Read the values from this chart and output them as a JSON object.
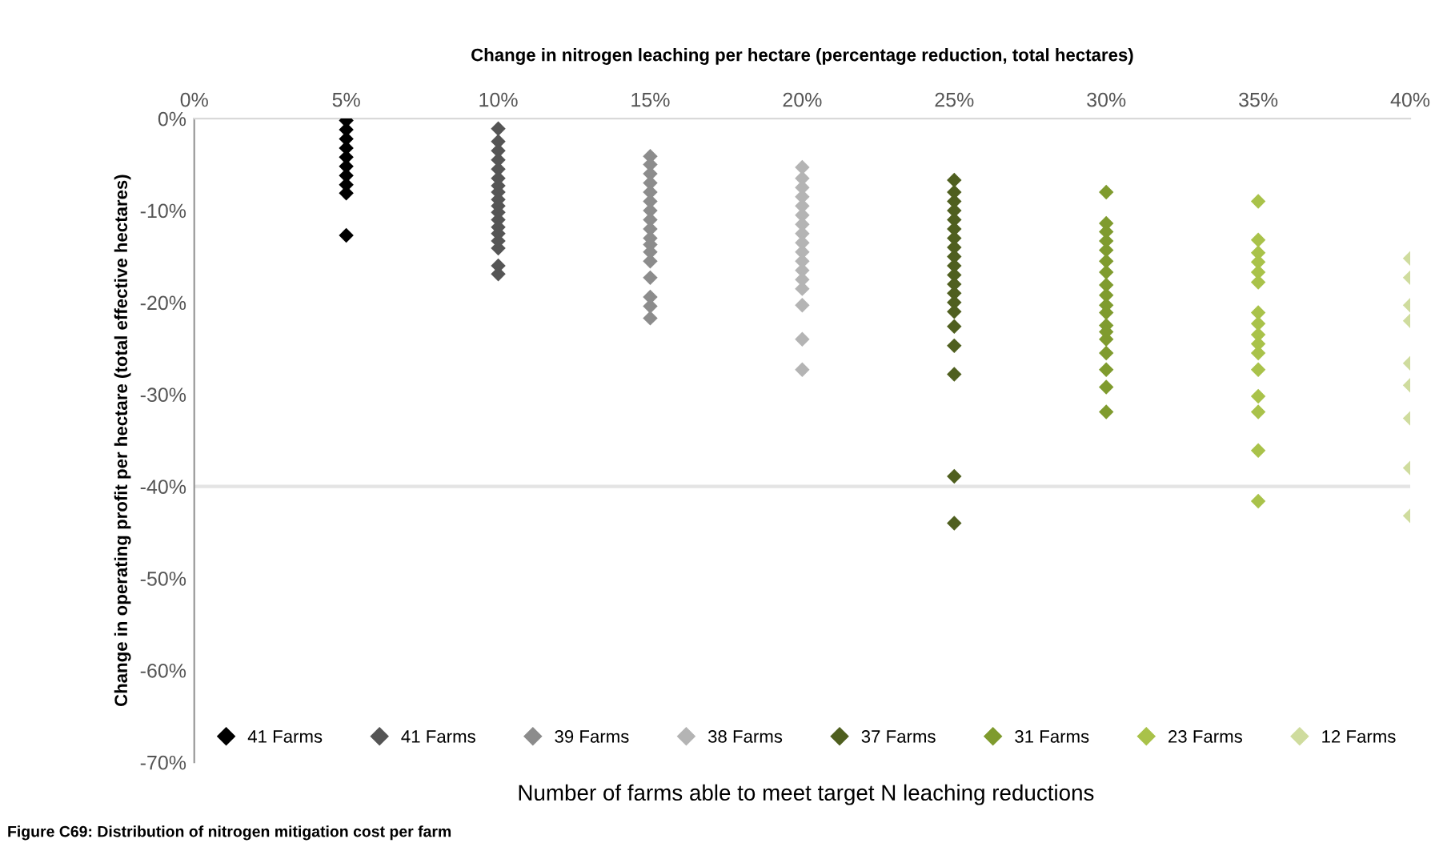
{
  "chart_data": {
    "type": "scatter",
    "xlabel": "Change in nitrogen leaching per hectare (percentage reduction, total hectares)",
    "ylabel": "Change in operating profit per hectare (total effective hectares)",
    "annotations": [
      "Number of farms able to meet target N leaching reductions",
      "Figure C69: Distribution of nitrogen mitigation cost per farm"
    ],
    "xlim": [
      0,
      40
    ],
    "xticks": [
      {
        "value": 0,
        "label": "0%"
      },
      {
        "value": 5,
        "label": "5%"
      },
      {
        "value": 10,
        "label": "10%"
      },
      {
        "value": 15,
        "label": "15%"
      },
      {
        "value": 20,
        "label": "20%"
      },
      {
        "value": 25,
        "label": "25%"
      },
      {
        "value": 30,
        "label": "30%"
      },
      {
        "value": 35,
        "label": "35%"
      },
      {
        "value": 40,
        "label": "40%"
      }
    ],
    "ylim": [
      -70,
      0
    ],
    "yticks": [
      {
        "value": -70,
        "label": "-70%"
      },
      {
        "value": -60,
        "label": "-60%"
      },
      {
        "value": -50,
        "label": "-50%"
      },
      {
        "value": -40,
        "label": "-40%"
      },
      {
        "value": -30,
        "label": "-30%"
      },
      {
        "value": -20,
        "label": "-20%"
      },
      {
        "value": -10,
        "label": "-10%"
      },
      {
        "value": 0,
        "label": "0%"
      }
    ],
    "ref_lines": [
      {
        "axis": "y",
        "value": -40,
        "color": "#e4e4e4"
      }
    ],
    "marker": "diamond",
    "legend": "bottom",
    "grid": false,
    "series": [
      {
        "name": "41 Farms",
        "color": "#000000",
        "x": [
          5,
          5,
          5,
          5,
          5,
          5,
          5,
          5,
          5,
          5
        ],
        "values": [
          -0.2,
          -1.2,
          -2.2,
          -3.2,
          -4.2,
          -5.2,
          -6.2,
          -7.2,
          -8.1,
          -12.7
        ]
      },
      {
        "name": "41 Farms",
        "color": "#555555",
        "x": [
          10,
          10,
          10,
          10,
          10,
          10,
          10,
          10,
          10,
          10,
          10,
          10,
          10,
          10,
          10,
          10,
          10,
          10
        ],
        "values": [
          -1.1,
          -2.5,
          -3.5,
          -4.5,
          -5.5,
          -6.5,
          -7.3,
          -8.0,
          -8.8,
          -9.5,
          -10.2,
          -11.0,
          -11.8,
          -12.5,
          -14.1,
          -16.0,
          -16.9,
          -13.3
        ]
      },
      {
        "name": "39 Farms",
        "color": "#8c8c8c",
        "x": [
          15,
          15,
          15,
          15,
          15,
          15,
          15,
          15,
          15,
          15,
          15,
          15,
          15,
          15,
          15,
          15,
          15
        ],
        "values": [
          -4.1,
          -5.0,
          -6.0,
          -7.0,
          -8.0,
          -9.0,
          -10.0,
          -11.0,
          -12.0,
          -13.0,
          -13.7,
          -15.5,
          -17.3,
          -19.4,
          -20.4,
          -21.7,
          -14.5
        ]
      },
      {
        "name": "38 Farms",
        "color": "#b4b4b4",
        "x": [
          20,
          20,
          20,
          20,
          20,
          20,
          20,
          20,
          20,
          20,
          20,
          20,
          20,
          20,
          20,
          20,
          20
        ],
        "values": [
          -5.3,
          -6.5,
          -7.5,
          -8.5,
          -9.5,
          -10.5,
          -11.5,
          -12.5,
          -13.5,
          -14.5,
          -15.5,
          -16.5,
          -17.5,
          -18.5,
          -20.3,
          -24.0,
          -27.3
        ]
      },
      {
        "name": "37 Farms",
        "color": "#4f5f1f",
        "x": [
          25,
          25,
          25,
          25,
          25,
          25,
          25,
          25,
          25,
          25,
          25,
          25,
          25,
          25,
          25,
          25,
          25,
          25,
          25,
          25
        ],
        "values": [
          -6.7,
          -9.0,
          -10.0,
          -11.0,
          -12.0,
          -13.0,
          -14.0,
          -15.0,
          -16.0,
          -17.0,
          -18.0,
          -19.0,
          -20.0,
          -21.0,
          -22.6,
          -24.7,
          -27.8,
          -38.9,
          -44.0,
          -8.0
        ]
      },
      {
        "name": "31 Farms",
        "color": "#7f9b2e",
        "x": [
          30,
          30,
          30,
          30,
          30,
          30,
          30,
          30,
          30,
          30,
          30,
          30,
          30,
          30,
          30,
          30,
          30,
          30
        ],
        "values": [
          -8.0,
          -11.4,
          -12.3,
          -13.3,
          -14.3,
          -15.5,
          -16.7,
          -18.1,
          -19.2,
          -20.3,
          -21.1,
          -22.5,
          -24.0,
          -25.5,
          -27.3,
          -29.2,
          -31.9,
          -23.2
        ]
      },
      {
        "name": "23 Farms",
        "color": "#a9c24a",
        "x": [
          35,
          35,
          35,
          35,
          35,
          35,
          35,
          35,
          35,
          35,
          35,
          35,
          35,
          35,
          35,
          35
        ],
        "values": [
          -9.0,
          -13.2,
          -14.6,
          -15.6,
          -16.7,
          -17.8,
          -21.1,
          -22.3,
          -23.5,
          -24.5,
          -25.5,
          -27.3,
          -30.2,
          -31.9,
          -36.1,
          -41.6
        ]
      },
      {
        "name": "12 Farms",
        "color": "#cfdc9e",
        "x": [
          40,
          40,
          40,
          40,
          40,
          40,
          40,
          40,
          40
        ],
        "values": [
          -15.2,
          -17.3,
          -20.3,
          -22.0,
          -26.6,
          -29.0,
          -32.6,
          -38.0,
          -43.2
        ]
      }
    ]
  }
}
